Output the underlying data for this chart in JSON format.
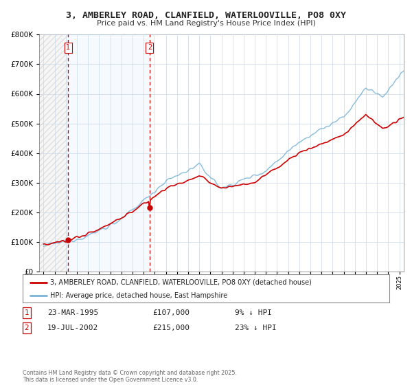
{
  "title": "3, AMBERLEY ROAD, CLANFIELD, WATERLOOVILLE, PO8 0XY",
  "subtitle": "Price paid vs. HM Land Registry's House Price Index (HPI)",
  "legend_line1": "3, AMBERLEY ROAD, CLANFIELD, WATERLOOVILLE, PO8 0XY (detached house)",
  "legend_line2": "HPI: Average price, detached house, East Hampshire",
  "transaction1_date": "23-MAR-1995",
  "transaction1_price": "£107,000",
  "transaction1_hpi": "9% ↓ HPI",
  "transaction1_year": 1995.22,
  "transaction1_value": 107000,
  "transaction2_date": "19-JUL-2002",
  "transaction2_price": "£215,000",
  "transaction2_hpi": "23% ↓ HPI",
  "transaction2_year": 2002.54,
  "transaction2_value": 215000,
  "hpi_color": "#7ab4d8",
  "price_color": "#cc0000",
  "vline_color": "#cc0000",
  "grid_color": "#c8d8e8",
  "background_color": "#ffffff",
  "plot_bg_color": "#ffffff",
  "shade_color": "#ddeeff",
  "hatch_color": "#c0c8d0",
  "footnote": "Contains HM Land Registry data © Crown copyright and database right 2025.\nThis data is licensed under the Open Government Licence v3.0.",
  "ylim_max": 800000,
  "xlim_min": 1993,
  "xlim_max": 2025
}
